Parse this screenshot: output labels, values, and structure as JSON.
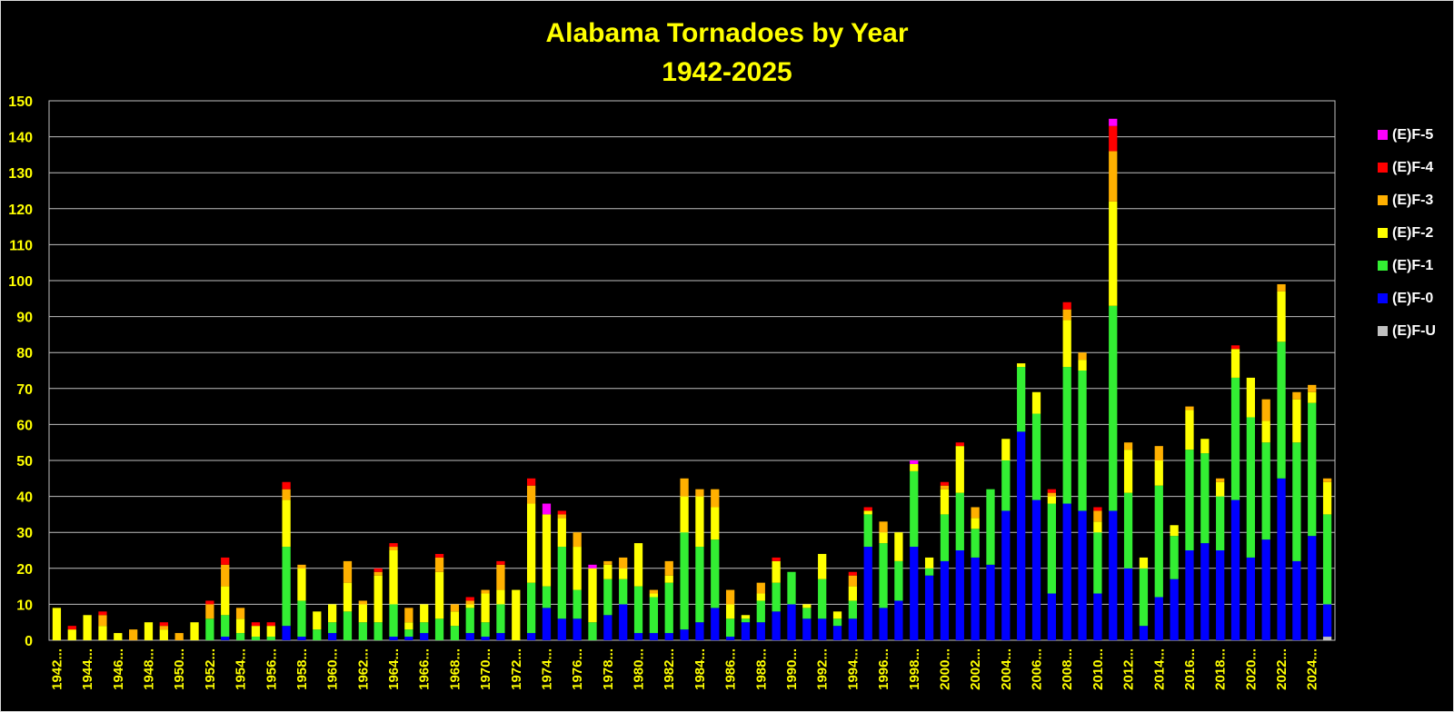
{
  "chart_data": {
    "type": "bar",
    "stacked": true,
    "title": "Alabama Tornadoes by Year",
    "subtitle": "1942-2025",
    "ylim": [
      0,
      150
    ],
    "yticks": [
      0,
      10,
      20,
      30,
      40,
      50,
      60,
      70,
      80,
      90,
      100,
      110,
      120,
      130,
      140,
      150
    ],
    "grid": true,
    "legend_position": "right",
    "x": [
      1942,
      1943,
      1944,
      1945,
      1946,
      1947,
      1948,
      1949,
      1950,
      1951,
      1952,
      1953,
      1954,
      1955,
      1956,
      1957,
      1958,
      1959,
      1960,
      1961,
      1962,
      1963,
      1964,
      1965,
      1966,
      1967,
      1968,
      1969,
      1970,
      1971,
      1972,
      1973,
      1974,
      1975,
      1976,
      1977,
      1978,
      1979,
      1980,
      1981,
      1982,
      1983,
      1984,
      1985,
      1986,
      1987,
      1988,
      1989,
      1990,
      1991,
      1992,
      1993,
      1994,
      1995,
      1996,
      1997,
      1998,
      1999,
      2000,
      2001,
      2002,
      2003,
      2004,
      2005,
      2006,
      2007,
      2008,
      2009,
      2010,
      2011,
      2012,
      2013,
      2014,
      2015,
      2016,
      2017,
      2018,
      2019,
      2020,
      2021,
      2022,
      2023,
      2024,
      2025
    ],
    "tick_labels": [
      "1942...",
      "1944...",
      "1946...",
      "1948...",
      "1950...",
      "1952...",
      "1954...",
      "1956...",
      "1958...",
      "1960...",
      "1962...",
      "1964...",
      "1966...",
      "1968...",
      "1970...",
      "1972...",
      "1974...",
      "1976...",
      "1978...",
      "1980...",
      "1982...",
      "1984...",
      "1986...",
      "1988...",
      "1990...",
      "1992...",
      "1994...",
      "1996...",
      "1998...",
      "2000...",
      "2002...",
      "2004...",
      "2006...",
      "2008...",
      "2010...",
      "2012...",
      "2014...",
      "2016...",
      "2018...",
      "2020...",
      "2022...",
      "2024..."
    ],
    "series": [
      {
        "name": "(E)F-U",
        "color": "#c0c0c0",
        "values": [
          0,
          0,
          0,
          0,
          0,
          0,
          0,
          0,
          0,
          0,
          0,
          0,
          0,
          0,
          0,
          0,
          0,
          0,
          0,
          0,
          0,
          0,
          0,
          0,
          0,
          0,
          0,
          0,
          0,
          0,
          0,
          0,
          0,
          0,
          0,
          0,
          0,
          0,
          0,
          0,
          0,
          0,
          0,
          0,
          0,
          0,
          0,
          0,
          0,
          0,
          0,
          0,
          0,
          0,
          0,
          0,
          0,
          0,
          0,
          0,
          0,
          0,
          0,
          0,
          0,
          0,
          0,
          0,
          0,
          0,
          0,
          0,
          0,
          0,
          0,
          0,
          0,
          0,
          0,
          0,
          0,
          0,
          0,
          1
        ]
      },
      {
        "name": "(E)F-0",
        "color": "#0000ff",
        "values": [
          0,
          0,
          0,
          0,
          0,
          0,
          0,
          0,
          0,
          0,
          0,
          1,
          0,
          0,
          0,
          4,
          1,
          0,
          2,
          0,
          0,
          0,
          1,
          1,
          2,
          0,
          0,
          2,
          1,
          2,
          0,
          2,
          9,
          6,
          6,
          0,
          7,
          10,
          2,
          2,
          2,
          3,
          5,
          9,
          1,
          5,
          5,
          8,
          10,
          6,
          6,
          4,
          6,
          26,
          9,
          11,
          26,
          18,
          22,
          25,
          23,
          21,
          36,
          58,
          39,
          13,
          38,
          36,
          13,
          36,
          20,
          4,
          12,
          17,
          25,
          27,
          25,
          39,
          23,
          28,
          45,
          22,
          29,
          9
        ]
      },
      {
        "name": "(E)F-1",
        "color": "#33ee33",
        "values": [
          0,
          0,
          0,
          0,
          0,
          0,
          0,
          0,
          0,
          0,
          6,
          6,
          2,
          1,
          1,
          22,
          10,
          3,
          3,
          8,
          5,
          5,
          9,
          2,
          3,
          6,
          4,
          7,
          4,
          8,
          0,
          14,
          6,
          20,
          8,
          5,
          10,
          7,
          13,
          10,
          14,
          27,
          21,
          19,
          5,
          1,
          6,
          8,
          9,
          3,
          11,
          2,
          5,
          9,
          18,
          11,
          21,
          2,
          13,
          16,
          8,
          21,
          14,
          18,
          24,
          25,
          38,
          39,
          17,
          57,
          21,
          16,
          31,
          12,
          28,
          25,
          15,
          34,
          39,
          27,
          38,
          33,
          37,
          25
        ]
      },
      {
        "name": "(E)F-2",
        "color": "#ffff00",
        "values": [
          9,
          3,
          7,
          4,
          2,
          0,
          5,
          3,
          0,
          5,
          0,
          8,
          4,
          3,
          3,
          13,
          9,
          5,
          5,
          8,
          5,
          13,
          15,
          2,
          5,
          13,
          4,
          1,
          8,
          4,
          14,
          22,
          20,
          8,
          12,
          15,
          4,
          3,
          12,
          1,
          2,
          10,
          14,
          9,
          4,
          1,
          2,
          6,
          0,
          1,
          7,
          2,
          4,
          1,
          3,
          8,
          2,
          3,
          7,
          13,
          3,
          0,
          6,
          1,
          6,
          2,
          13,
          3,
          3,
          29,
          12,
          3,
          7,
          3,
          11,
          4,
          4,
          8,
          11,
          6,
          14,
          12,
          3,
          9
        ]
      },
      {
        "name": "(E)F-3",
        "color": "#ffb000",
        "values": [
          0,
          0,
          0,
          3,
          0,
          3,
          0,
          1,
          2,
          0,
          4,
          6,
          3,
          0,
          0,
          3,
          1,
          0,
          0,
          6,
          1,
          1,
          1,
          4,
          0,
          4,
          2,
          1,
          1,
          7,
          0,
          5,
          0,
          1,
          4,
          0,
          1,
          3,
          0,
          1,
          4,
          5,
          2,
          5,
          4,
          0,
          3,
          0,
          0,
          0,
          0,
          0,
          3,
          0,
          3,
          0,
          0,
          0,
          1,
          0,
          3,
          0,
          0,
          0,
          0,
          1,
          3,
          2,
          3,
          14,
          2,
          0,
          4,
          0,
          1,
          0,
          1,
          0,
          0,
          6,
          2,
          2,
          2,
          1
        ]
      },
      {
        "name": "(E)F-4",
        "color": "#ff0000",
        "values": [
          0,
          1,
          0,
          1,
          0,
          0,
          0,
          1,
          0,
          0,
          1,
          2,
          0,
          1,
          1,
          2,
          0,
          0,
          0,
          0,
          0,
          1,
          1,
          0,
          0,
          1,
          0,
          1,
          0,
          1,
          0,
          2,
          0,
          1,
          0,
          0,
          0,
          0,
          0,
          0,
          0,
          0,
          0,
          0,
          0,
          0,
          0,
          1,
          0,
          0,
          0,
          0,
          1,
          1,
          0,
          0,
          0,
          0,
          1,
          1,
          0,
          0,
          0,
          0,
          0,
          1,
          2,
          0,
          1,
          7,
          0,
          0,
          0,
          0,
          0,
          0,
          0,
          1,
          0,
          0,
          0,
          0,
          0,
          0
        ]
      },
      {
        "name": "(E)F-5",
        "color": "#ff00ff",
        "values": [
          0,
          0,
          0,
          0,
          0,
          0,
          0,
          0,
          0,
          0,
          0,
          0,
          0,
          0,
          0,
          0,
          0,
          0,
          0,
          0,
          0,
          0,
          0,
          0,
          0,
          0,
          0,
          0,
          0,
          0,
          0,
          0,
          3,
          0,
          0,
          1,
          0,
          0,
          0,
          0,
          0,
          0,
          0,
          0,
          0,
          0,
          0,
          0,
          0,
          0,
          0,
          0,
          0,
          0,
          0,
          0,
          1,
          0,
          0,
          0,
          0,
          0,
          0,
          0,
          0,
          0,
          0,
          0,
          0,
          2,
          0,
          0,
          0,
          0,
          0,
          0,
          0,
          0,
          0,
          0,
          0,
          0,
          0,
          0
        ]
      }
    ],
    "legend_order": [
      "(E)F-5",
      "(E)F-4",
      "(E)F-3",
      "(E)F-2",
      "(E)F-1",
      "(E)F-0",
      "(E)F-U"
    ]
  }
}
